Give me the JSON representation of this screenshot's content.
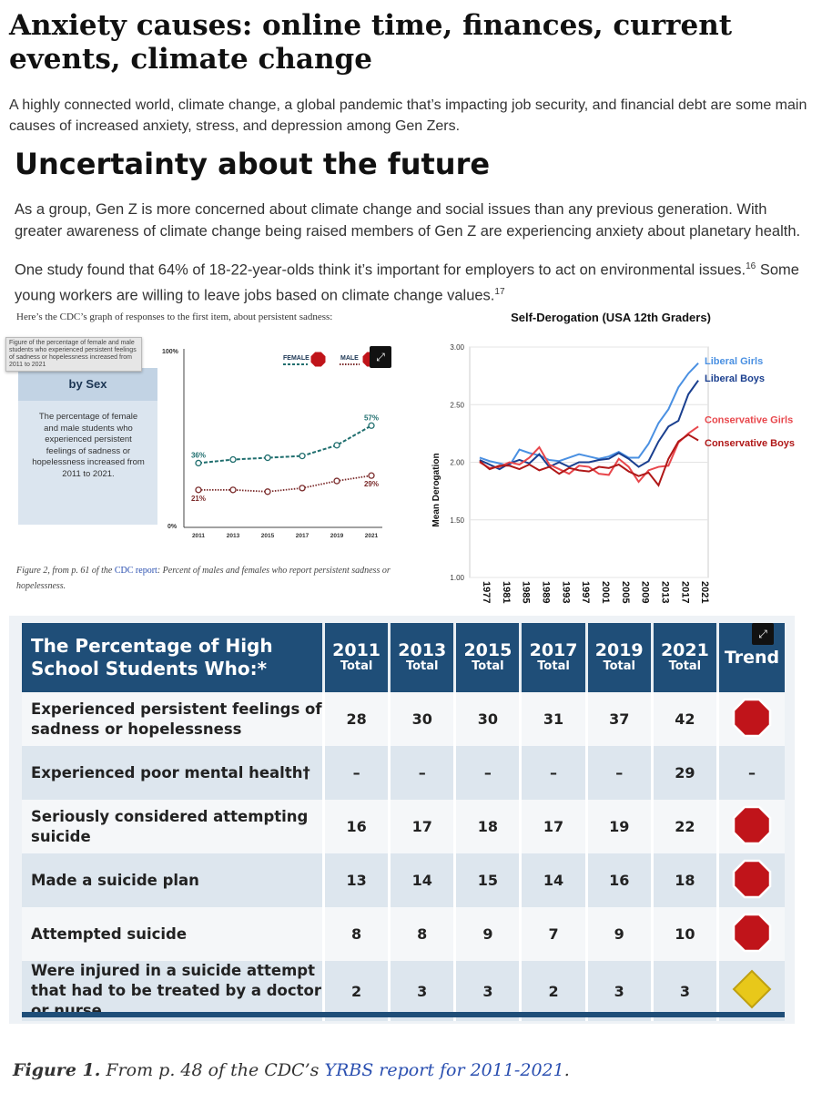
{
  "article": {
    "heading": "Anxiety causes: online time, finances, current events, climate change",
    "intro": "A highly connected world, climate change, a global pandemic that’s impacting job security, and financial debt are some main causes of increased anxiety, stress, and depression among Gen Zers.",
    "subheading": "Uncertainty about the future",
    "para1": "As a group, Gen Z is more concerned about climate change and social issues than any previous generation. With greater awareness of climate change being raised members of Gen Z are experiencing anxiety about planetary health.",
    "para2": "One study found that 64% of 18-22-year-olds think it’s important for employers to act on environmental issues.",
    "para2_ref": "16",
    "para2b": " Some young workers are willing to leave jobs based on climate change values.",
    "para2b_ref": "17",
    "cdc_caption": "Here’s the CDC’s graph of responses to the first item, about persistent sadness:"
  },
  "cdc_chart": {
    "tooltip": "Figure of the percentage of female and male students who experienced persistent feelings of sadness or hopelessness increased from 2011 to 2021",
    "panel_title": "by Sex",
    "panel_text": "The percentage of female and male students who experienced persistent feelings of sadness or hopelessness increased from 2011 to 2021.",
    "legend_female": "FEMALE",
    "legend_male": "MALE",
    "y_top": "100%",
    "y_bottom": "0%",
    "expand_icon": "expand-icon",
    "figure_caption_prefix": "Figure 2, from p. 61 of the ",
    "figure_caption_link": "CDC report",
    "figure_caption_suffix": ": Percent of males and females who report persistent sadness or hopelessness."
  },
  "chart_data": [
    {
      "type": "line",
      "title": "",
      "x": [
        "2011",
        "2013",
        "2015",
        "2017",
        "2019",
        "2021"
      ],
      "ylim": [
        0,
        100
      ],
      "series": [
        {
          "name": "FEMALE",
          "values": [
            36,
            38,
            39,
            40,
            46,
            57
          ],
          "labels": {
            "0": "36%",
            "5": "57%"
          },
          "color": "#1f6e6e"
        },
        {
          "name": "MALE",
          "values": [
            21,
            21,
            20,
            22,
            26,
            29
          ],
          "labels": {
            "0": "21%",
            "5": "29%"
          },
          "color": "#7a2a2a"
        }
      ]
    },
    {
      "type": "line",
      "title": "Self-Derogation (USA 12th Graders)",
      "ylabel": "Mean Derogation",
      "xlabel": "",
      "ylim": [
        1.0,
        3.0
      ],
      "yticks": [
        "1.00",
        "1.50",
        "2.00",
        "2.50",
        "3.00"
      ],
      "xticks": [
        "1977",
        "1981",
        "1985",
        "1989",
        "1993",
        "1997",
        "2001",
        "2005",
        "2009",
        "2013",
        "2017",
        "2021"
      ],
      "x": [
        1977,
        1979,
        1981,
        1983,
        1985,
        1987,
        1989,
        1991,
        1993,
        1995,
        1997,
        1999,
        2001,
        2003,
        2005,
        2007,
        2009,
        2011,
        2013,
        2015,
        2017,
        2019,
        2021
      ],
      "series": [
        {
          "name": "Liberal Girls",
          "color": "#4a90e2",
          "values": [
            2.04,
            2.01,
            1.99,
            1.97,
            2.11,
            2.08,
            2.06,
            2.02,
            2.01,
            2.04,
            2.07,
            2.05,
            2.03,
            2.05,
            2.09,
            2.04,
            2.04,
            2.16,
            2.34,
            2.46,
            2.65,
            2.77,
            2.86
          ]
        },
        {
          "name": "Liberal Boys",
          "color": "#1a3f8f",
          "values": [
            2.02,
            1.98,
            1.94,
            1.99,
            2.02,
            1.99,
            2.07,
            1.96,
            2.0,
            1.96,
            2.0,
            2.0,
            2.02,
            2.03,
            2.08,
            2.03,
            1.96,
            2.01,
            2.18,
            2.31,
            2.36,
            2.59,
            2.71
          ]
        },
        {
          "name": "Conservative Girls",
          "color": "#e8474c",
          "values": [
            2.0,
            1.95,
            1.96,
            2.0,
            1.98,
            2.04,
            2.13,
            1.98,
            1.94,
            1.9,
            1.97,
            1.96,
            1.9,
            1.89,
            2.03,
            1.96,
            1.83,
            1.93,
            1.96,
            1.97,
            2.17,
            2.25,
            2.31
          ]
        },
        {
          "name": "Conservative Boys",
          "color": "#b01818",
          "values": [
            2.01,
            1.94,
            1.97,
            1.97,
            1.94,
            1.98,
            1.93,
            1.96,
            1.9,
            1.95,
            1.93,
            1.92,
            1.96,
            1.95,
            1.98,
            1.92,
            1.88,
            1.91,
            1.8,
            2.03,
            2.18,
            2.24,
            2.19
          ]
        }
      ]
    }
  ],
  "yrbs_table": {
    "header_label": "The Percentage of High School Students Who:*",
    "years": [
      "2011",
      "2013",
      "2015",
      "2017",
      "2019",
      "2021"
    ],
    "total_label": "Total",
    "trend_label": "Trend",
    "rows": [
      {
        "label": "Experienced persistent feelings of sadness or hopelessness",
        "values": [
          "28",
          "30",
          "30",
          "31",
          "37",
          "42"
        ],
        "trend": "red-stop-sign-icon"
      },
      {
        "label": "Experienced poor mental health†",
        "values": [
          "–",
          "–",
          "–",
          "–",
          "–",
          "29"
        ],
        "trend": "–"
      },
      {
        "label": "Seriously considered attempting suicide",
        "values": [
          "16",
          "17",
          "18",
          "17",
          "19",
          "22"
        ],
        "trend": "red-stop-sign-icon"
      },
      {
        "label": "Made a suicide plan",
        "values": [
          "13",
          "14",
          "15",
          "14",
          "16",
          "18"
        ],
        "trend": "red-stop-sign-icon"
      },
      {
        "label": "Attempted suicide",
        "values": [
          "8",
          "8",
          "9",
          "7",
          "9",
          "10"
        ],
        "trend": "red-stop-sign-icon"
      },
      {
        "label": "Were injured in a suicide attempt that had to be treated by a doctor or nurse",
        "values": [
          "2",
          "3",
          "3",
          "2",
          "3",
          "3"
        ],
        "trend": "yellow-diamond-icon"
      }
    ]
  },
  "figure1": {
    "prefix": "Figure 1.",
    "middle": " From p. 48 of the CDC’s ",
    "link": "YRBS report for 2011-2021",
    "suffix": "."
  },
  "colors": {
    "header_blue": "#1f4e78",
    "stop_red": "#c0141a",
    "yield_yellow": "#e8c81a"
  }
}
